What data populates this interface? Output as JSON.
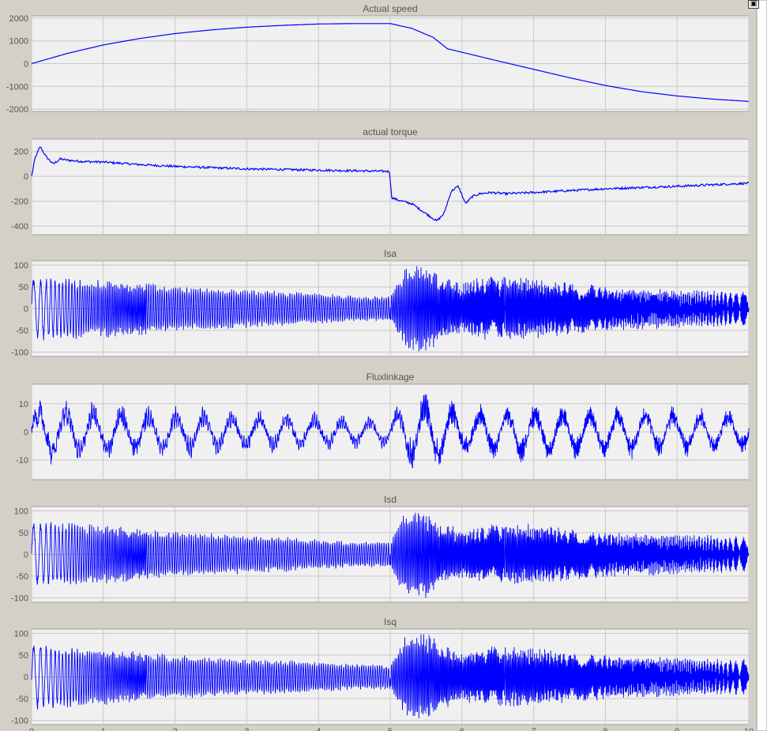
{
  "window": {
    "expand_icon": "expand-axes-icon"
  },
  "colors": {
    "background": "#d4d0c8",
    "axes_background": "#f0f0f0",
    "grid": "#c8c8c8",
    "trace": "#0000ff",
    "text": "#555555"
  },
  "chart_data": [
    {
      "type": "line",
      "title": "Actual speed",
      "xlim": [
        0,
        10
      ],
      "ylim": [
        -2100,
        2100
      ],
      "yticks": [
        -2000,
        -1000,
        0,
        1000,
        2000
      ],
      "xticks": [],
      "grid": true,
      "series": [
        {
          "color": "#0000ff",
          "x": [
            0,
            0.5,
            1,
            1.5,
            2,
            2.5,
            3,
            3.5,
            4,
            4.5,
            5,
            5.3,
            5.6,
            5.8,
            6,
            6.5,
            7,
            7.5,
            8,
            8.5,
            9,
            9.5,
            10
          ],
          "y": [
            0,
            450,
            820,
            1100,
            1320,
            1480,
            1600,
            1680,
            1740,
            1760,
            1760,
            1550,
            1150,
            650,
            500,
            120,
            -250,
            -620,
            -960,
            -1230,
            -1420,
            -1560,
            -1660
          ]
        }
      ]
    },
    {
      "type": "line",
      "title": "actual torque",
      "xlim": [
        0,
        10
      ],
      "ylim": [
        -470,
        300
      ],
      "yticks": [
        -400,
        -200,
        0,
        200
      ],
      "xticks": [],
      "grid": true,
      "series": [
        {
          "color": "#0000ff",
          "x": [
            0,
            0.05,
            0.12,
            0.2,
            0.3,
            0.4,
            0.5,
            0.7,
            1,
            1.5,
            2,
            2.5,
            3,
            3.5,
            4,
            4.5,
            4.99,
            5.02,
            5.1,
            5.3,
            5.5,
            5.65,
            5.75,
            5.85,
            5.95,
            6.05,
            6.15,
            6.25,
            6.4,
            6.6,
            7,
            8,
            9,
            10
          ],
          "y": [
            0,
            150,
            240,
            160,
            100,
            140,
            130,
            120,
            115,
            95,
            80,
            70,
            60,
            55,
            50,
            45,
            40,
            -170,
            -190,
            -220,
            -300,
            -360,
            -300,
            -120,
            -80,
            -220,
            -160,
            -140,
            -130,
            -140,
            -130,
            -100,
            -80,
            -55
          ]
        }
      ]
    },
    {
      "type": "line",
      "title": "Isa",
      "xlim": [
        0,
        10
      ],
      "ylim": [
        -110,
        110
      ],
      "yticks": [
        -100,
        -50,
        0,
        50,
        100
      ],
      "xticks": [],
      "grid": true,
      "series": [
        {
          "color": "#0000ff",
          "x": [
            0,
            0.5,
            1,
            1.5,
            2,
            2.5,
            3,
            3.5,
            4,
            4.5,
            5,
            5.2,
            5.5,
            5.8,
            6,
            6.2,
            6.5,
            7,
            7.5,
            8,
            8.5,
            9,
            9.5,
            10
          ],
          "y": [
            66,
            60,
            58,
            52,
            45,
            42,
            38,
            35,
            30,
            26,
            25,
            80,
            88,
            60,
            50,
            60,
            65,
            60,
            52,
            45,
            42,
            38,
            36,
            35
          ]
        }
      ]
    },
    {
      "type": "line",
      "title": "Fluxlinkage",
      "xlim": [
        0,
        10
      ],
      "ylim": [
        -17,
        17
      ],
      "yticks": [
        -10,
        0,
        10
      ],
      "xticks": [],
      "grid": true,
      "series": [
        {
          "color": "#0000ff",
          "x": [
            0,
            0.5,
            1,
            1.5,
            2,
            2.5,
            3,
            3.5,
            4,
            4.5,
            5,
            5.2,
            5.5,
            5.8,
            6,
            6.5,
            7,
            7.5,
            8,
            8.5,
            9,
            9.5,
            10
          ],
          "y": [
            10,
            10,
            9,
            8,
            8,
            7.5,
            7,
            6.5,
            6,
            5,
            5,
            12,
            13,
            10,
            8,
            9,
            9,
            8.5,
            8,
            8,
            7.5,
            7,
            7
          ]
        }
      ]
    },
    {
      "type": "line",
      "title": "Isd",
      "xlim": [
        0,
        10
      ],
      "ylim": [
        -110,
        110
      ],
      "yticks": [
        -100,
        -50,
        0,
        50,
        100
      ],
      "xticks": [],
      "grid": true,
      "series": [
        {
          "color": "#0000ff",
          "x": [
            0,
            0.5,
            1,
            1.5,
            2,
            2.5,
            3,
            3.5,
            4,
            4.5,
            5,
            5.2,
            5.5,
            5.8,
            6,
            6.5,
            7,
            7.5,
            8,
            8.5,
            9,
            9.5,
            10
          ],
          "y": [
            66,
            62,
            58,
            52,
            45,
            42,
            38,
            35,
            30,
            26,
            25,
            85,
            88,
            60,
            50,
            62,
            60,
            52,
            45,
            42,
            40,
            38,
            35
          ]
        }
      ]
    },
    {
      "type": "line",
      "title": "Isq",
      "xlim": [
        0,
        10
      ],
      "ylim": [
        -110,
        110
      ],
      "yticks": [
        -100,
        -50,
        0,
        50,
        100
      ],
      "xticks": [
        0,
        1,
        2,
        3,
        4,
        5,
        6,
        7,
        8,
        9,
        10
      ],
      "grid": true,
      "series": [
        {
          "color": "#0000ff",
          "x": [
            0,
            0.5,
            1,
            1.5,
            2,
            2.5,
            3,
            3.5,
            4,
            4.5,
            5,
            5.2,
            5.5,
            5.8,
            6,
            6.5,
            7,
            7.5,
            8,
            8.5,
            9,
            9.5,
            10
          ],
          "y": [
            66,
            60,
            56,
            50,
            44,
            40,
            37,
            34,
            30,
            26,
            25,
            80,
            88,
            60,
            50,
            62,
            58,
            50,
            45,
            42,
            38,
            36,
            35
          ]
        }
      ]
    }
  ]
}
